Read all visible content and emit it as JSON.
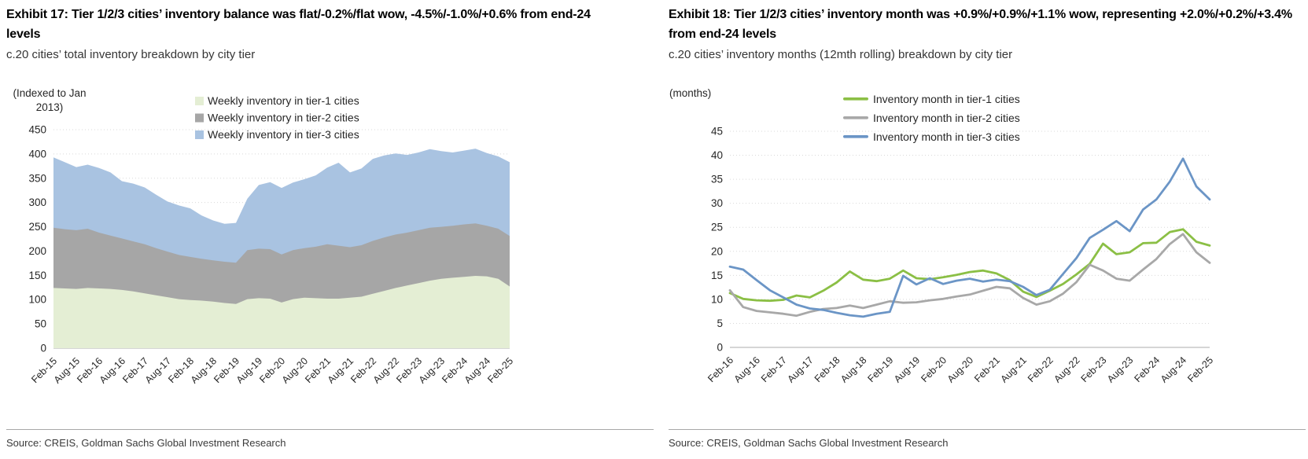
{
  "source_note": "Source: CREIS, Goldman Sachs Global Investment Research",
  "colors": {
    "title_text": "#000000",
    "body_text": "#262626",
    "source_text": "#3a3a3a",
    "rule": "#a8a8a8",
    "grid": "#d9d9d9",
    "axis": "#bdbdbd",
    "tier1_area": "#e4eed4",
    "tier2_area": "#a6a6a6",
    "tier3_area": "#a9c3e1",
    "tier1_line": "#8bbf45",
    "tier2_line": "#a8a8a8",
    "tier3_line": "#6b95c6"
  },
  "chart_data": [
    {
      "type": "area",
      "stacked": true,
      "title": "Exhibit 17: Tier 1/2/3 cities’ inventory balance was flat/-0.2%/flat wow, -4.5%/-1.0%/+0.6% from end-24 levels",
      "subtitle": "c.20 cities’ total inventory breakdown by city tier",
      "unit_label": "(Indexed to Jan 2013)",
      "ylim": [
        0,
        450
      ],
      "yticks": [
        450,
        400,
        350,
        300,
        250,
        200,
        150,
        100,
        50,
        0
      ],
      "grid": "dotted-horizontal",
      "legend_position": "top-center",
      "xticklabels": [
        "Feb-15",
        "Aug-15",
        "Feb-16",
        "Aug-16",
        "Feb-17",
        "Aug-17",
        "Feb-18",
        "Aug-18",
        "Feb-19",
        "Aug-19",
        "Feb-20",
        "Aug-20",
        "Feb-21",
        "Aug-21",
        "Feb-22",
        "Aug-22",
        "Feb-23",
        "Aug-23",
        "Feb-24",
        "Aug-24",
        "Feb-25"
      ],
      "categories": [
        "Feb-15",
        "May-15",
        "Aug-15",
        "Nov-15",
        "Feb-16",
        "May-16",
        "Aug-16",
        "Nov-16",
        "Feb-17",
        "May-17",
        "Aug-17",
        "Nov-17",
        "Feb-18",
        "May-18",
        "Aug-18",
        "Nov-18",
        "Feb-19",
        "May-19",
        "Aug-19",
        "Nov-19",
        "Feb-20",
        "May-20",
        "Aug-20",
        "Nov-20",
        "Feb-21",
        "May-21",
        "Aug-21",
        "Nov-21",
        "Feb-22",
        "May-22",
        "Aug-22",
        "Nov-22",
        "Feb-23",
        "May-23",
        "Aug-23",
        "Nov-23",
        "Feb-24",
        "May-24",
        "Aug-24",
        "Nov-24",
        "Feb-25"
      ],
      "legend": [
        {
          "label": "Weekly inventory in tier-1 cities",
          "color": "#e4eed4",
          "marker": "square"
        },
        {
          "label": "Weekly inventory in tier-2 cities",
          "color": "#a6a6a6",
          "marker": "square"
        },
        {
          "label": "Weekly inventory in tier-3 cities",
          "color": "#a9c3e1",
          "marker": "square"
        }
      ],
      "series": [
        {
          "name": "Weekly inventory in tier-1 cities",
          "color": "#e4eed4",
          "values": [
            124,
            123,
            122,
            124,
            123,
            122,
            120,
            117,
            113,
            109,
            105,
            101,
            99,
            98,
            96,
            93,
            91,
            101,
            103,
            102,
            94,
            101,
            104,
            103,
            102,
            102,
            104,
            106,
            112,
            118,
            124,
            129,
            134,
            139,
            143,
            145,
            147,
            149,
            148,
            143,
            127
          ]
        },
        {
          "name": "Weekly inventory in tier-2 cities",
          "color": "#a6a6a6",
          "values": [
            124,
            122,
            121,
            122,
            115,
            110,
            106,
            103,
            101,
            97,
            94,
            91,
            89,
            86,
            85,
            85,
            85,
            101,
            102,
            102,
            99,
            101,
            102,
            106,
            112,
            109,
            104,
            106,
            109,
            110,
            110,
            109,
            109,
            109,
            107,
            107,
            108,
            108,
            104,
            103,
            104
          ]
        },
        {
          "name": "Weekly inventory in tier-3 cities",
          "color": "#a9c3e1",
          "values": [
            145,
            138,
            130,
            132,
            133,
            130,
            118,
            119,
            117,
            110,
            103,
            102,
            100,
            89,
            82,
            78,
            82,
            106,
            131,
            138,
            137,
            139,
            142,
            147,
            158,
            171,
            154,
            158,
            169,
            169,
            167,
            160,
            160,
            162,
            156,
            151,
            152,
            154,
            150,
            149,
            152
          ]
        }
      ]
    },
    {
      "type": "line",
      "stacked": false,
      "title": "Exhibit 18: Tier 1/2/3 cities’ inventory month was +0.9%/+0.9%/+1.1% wow, representing +2.0%/+0.2%/+3.4% from end-24 levels",
      "subtitle": "c.20 cities’ inventory months (12mth rolling) breakdown by city tier",
      "unit_label": "(months)",
      "ylim": [
        0,
        45
      ],
      "yticks": [
        45,
        40,
        35,
        30,
        25,
        20,
        15,
        10,
        5,
        0
      ],
      "grid": "dotted-horizontal",
      "legend_position": "top-center",
      "xticklabels": [
        "Feb-16",
        "Aug-16",
        "Feb-17",
        "Aug-17",
        "Feb-18",
        "Aug-18",
        "Feb-19",
        "Aug-19",
        "Feb-20",
        "Aug-20",
        "Feb-21",
        "Aug-21",
        "Feb-22",
        "Aug-22",
        "Feb-23",
        "Aug-23",
        "Feb-24",
        "Aug-24",
        "Feb-25"
      ],
      "categories": [
        "Feb-16",
        "May-16",
        "Aug-16",
        "Nov-16",
        "Feb-17",
        "May-17",
        "Aug-17",
        "Nov-17",
        "Feb-18",
        "May-18",
        "Aug-18",
        "Nov-18",
        "Feb-19",
        "May-19",
        "Aug-19",
        "Nov-19",
        "Feb-20",
        "May-20",
        "Aug-20",
        "Nov-20",
        "Feb-21",
        "May-21",
        "Aug-21",
        "Nov-21",
        "Feb-22",
        "May-22",
        "Aug-22",
        "Nov-22",
        "Feb-23",
        "May-23",
        "Aug-23",
        "Nov-23",
        "Feb-24",
        "May-24",
        "Aug-24",
        "Nov-24",
        "Feb-25"
      ],
      "legend": [
        {
          "label": "Inventory month in tier-1 cities",
          "color": "#8bbf45",
          "marker": "line"
        },
        {
          "label": "Inventory month in tier-2 cities",
          "color": "#a8a8a8",
          "marker": "line"
        },
        {
          "label": "Inventory month in tier-3 cities",
          "color": "#6b95c6",
          "marker": "line"
        }
      ],
      "series": [
        {
          "name": "Inventory month in tier-1 cities",
          "color": "#8bbf45",
          "values": [
            11.3,
            10.1,
            9.8,
            9.7,
            9.9,
            10.8,
            10.4,
            11.8,
            13.5,
            15.8,
            14.1,
            13.8,
            14.3,
            16.0,
            14.4,
            14.2,
            14.6,
            15.1,
            15.7,
            16.0,
            15.4,
            14.0,
            11.6,
            10.5,
            11.8,
            13.2,
            15.2,
            17.4,
            21.6,
            19.4,
            19.8,
            21.7,
            21.8,
            24.0,
            24.6,
            22.0,
            21.2
          ]
        },
        {
          "name": "Inventory month in tier-2 cities",
          "color": "#a8a8a8",
          "values": [
            11.9,
            8.4,
            7.6,
            7.3,
            7.0,
            6.6,
            7.4,
            8.0,
            8.2,
            8.7,
            8.2,
            8.9,
            9.6,
            9.3,
            9.4,
            9.8,
            10.1,
            10.6,
            11.0,
            11.8,
            12.6,
            12.3,
            10.3,
            8.9,
            9.6,
            11.2,
            13.6,
            17.2,
            16.0,
            14.3,
            13.9,
            16.2,
            18.4,
            21.5,
            23.6,
            19.8,
            17.6
          ]
        },
        {
          "name": "Inventory month in tier-3 cities",
          "color": "#6b95c6",
          "values": [
            16.8,
            16.2,
            14.0,
            11.9,
            10.4,
            8.9,
            8.1,
            7.8,
            7.2,
            6.7,
            6.4,
            7.0,
            7.4,
            14.9,
            13.1,
            14.4,
            13.2,
            13.9,
            14.3,
            13.7,
            14.1,
            13.8,
            12.6,
            10.9,
            12.0,
            15.3,
            18.6,
            22.8,
            24.5,
            26.3,
            24.2,
            28.7,
            30.8,
            34.5,
            39.3,
            33.5,
            30.8
          ]
        }
      ]
    }
  ]
}
